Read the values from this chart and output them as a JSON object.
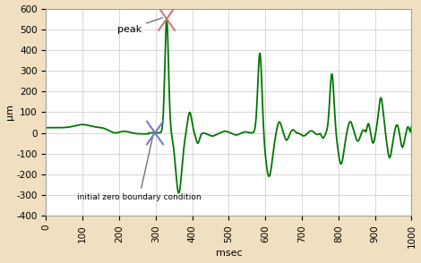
{
  "xlim": [
    0,
    1000
  ],
  "ylim": [
    -400,
    600
  ],
  "xticks": [
    0,
    100,
    200,
    300,
    400,
    500,
    600,
    700,
    800,
    900,
    1000
  ],
  "yticks": [
    -400,
    -300,
    -200,
    -100,
    0,
    100,
    200,
    300,
    400,
    500,
    600
  ],
  "xlabel": "msec",
  "ylabel": "μm",
  "line_color": "#007700",
  "line_width": 1.3,
  "background_color": "#f0dfc0",
  "plot_bg_color": "#ffffff",
  "grid_color": "#c8c8c8",
  "peak_x": 330,
  "peak_y": 550,
  "zero_x": 298,
  "zero_y": 0,
  "peak_label": "peak",
  "zero_label": "initial zero boundary condition",
  "peak_cross_color": "#cc7777",
  "zero_cross_color": "#7777cc",
  "annotation_color": "#666666",
  "axis_fontsize": 8,
  "tick_fontsize": 7.5,
  "annot_fontsize": 8
}
